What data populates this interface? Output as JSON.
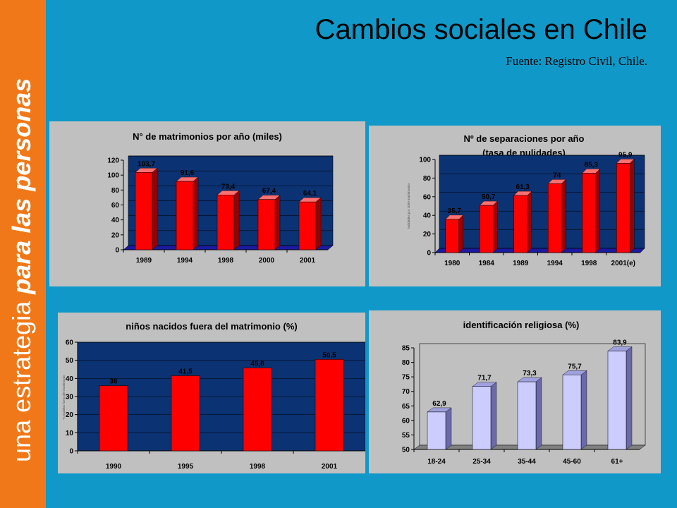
{
  "header": {
    "title": "Cambios sociales en Chile",
    "subtitle": "Fuente: Registro Civil, Chile."
  },
  "sidebar": {
    "text_regular": "una estrategia ",
    "text_italic": "para las personas"
  },
  "colors": {
    "background": "#0f98c8",
    "sidebar": "#f07818",
    "plot_dark": "#0b3272",
    "bar_red": "#ff0000",
    "bar_lavender": "#ccccff"
  },
  "chart_data": [
    {
      "id": "matrimonios",
      "type": "bar",
      "title": "N° de matrimonios por año (miles)",
      "categories": [
        "1989",
        "1994",
        "1998",
        "2000",
        "2001"
      ],
      "values": [
        103.7,
        91.6,
        73.4,
        67.4,
        64.1
      ],
      "labels": [
        "103,7",
        "91,6",
        "73,4",
        "67,4",
        "64,1"
      ],
      "ylim": [
        0,
        120
      ],
      "yticks": [
        0,
        20,
        40,
        60,
        80,
        100,
        120
      ]
    },
    {
      "id": "separaciones",
      "type": "bar",
      "title": "Nº de separaciones por año",
      "subtitle": "(tasa de nulidades)",
      "ylabel": "Nulidades por 1000 matrimonios",
      "categories": [
        "1980",
        "1984",
        "1989",
        "1994",
        "1998",
        "2001(e)"
      ],
      "values": [
        35.7,
        50.7,
        61.3,
        74,
        85.3,
        95.9
      ],
      "labels": [
        "35,7",
        "50,7",
        "61,3",
        "74",
        "85,3",
        "95,9"
      ],
      "ylim": [
        0,
        100
      ],
      "yticks": [
        0,
        20,
        40,
        60,
        80,
        100
      ]
    },
    {
      "id": "ninos",
      "type": "bar",
      "title": "niños nacidos fuera del matrimonio (%)",
      "ylabel": "% nacidos fuera del matrimonio",
      "categories": [
        "1990",
        "1995",
        "1998",
        "2001"
      ],
      "values": [
        36,
        41.5,
        45.8,
        50.5
      ],
      "labels": [
        "36",
        "41,5",
        "45,8",
        "50,5"
      ],
      "ylim": [
        0,
        60
      ],
      "yticks": [
        0,
        10,
        20,
        30,
        40,
        50,
        60
      ]
    },
    {
      "id": "religion",
      "type": "bar",
      "title": "identificación religiosa (%)",
      "categories": [
        "18-24",
        "25-34",
        "35-44",
        "45-60",
        "61+"
      ],
      "values": [
        62.9,
        71.7,
        73.3,
        75.7,
        83.9
      ],
      "labels": [
        "62,9",
        "71,7",
        "73,3",
        "75,7",
        "83,9"
      ],
      "ylim": [
        50,
        85
      ],
      "yticks": [
        50,
        55,
        60,
        65,
        70,
        75,
        80,
        85
      ]
    }
  ]
}
